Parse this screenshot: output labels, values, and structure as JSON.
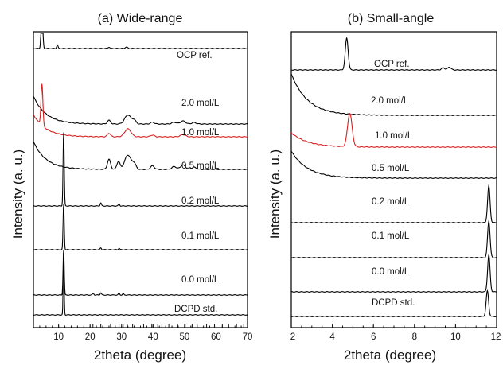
{
  "chart_data": [
    {
      "type": "line",
      "title": "(a) Wide-range",
      "xlabel": "2theta (degree)",
      "ylabel": "Intensity (a. u.)",
      "xlim": [
        2,
        70
      ],
      "x_ticks": [
        10,
        20,
        30,
        40,
        50,
        60,
        70
      ],
      "y_ticks_shown": false,
      "series": [
        {
          "name": "OCP ref.",
          "color": "#000000",
          "baseline": 0.0,
          "peaks": [
            [
              4.7,
              1.0,
              0.25
            ],
            [
              9.6,
              0.08,
              0.2
            ],
            [
              26,
              0.03,
              0.3
            ],
            [
              31.5,
              0.03,
              0.4
            ]
          ],
          "low_angle_tail": 0.0
        },
        {
          "name": "2.0 mol/L",
          "color": "#000000",
          "baseline": 0.0,
          "peaks": [
            [
              26,
              0.12,
              0.5
            ],
            [
              32,
              0.3,
              1.0
            ],
            [
              34,
              0.12,
              0.6
            ],
            [
              39.8,
              0.06,
              0.6
            ],
            [
              46.7,
              0.06,
              0.7
            ],
            [
              49.5,
              0.1,
              0.8
            ],
            [
              53,
              0.05,
              0.7
            ]
          ],
          "low_angle_tail": 0.9
        },
        {
          "name": "1.0 mol/L",
          "color": "#d62020",
          "baseline": 0.0,
          "peaks": [
            [
              4.7,
              0.95,
              0.3
            ],
            [
              26,
              0.08,
              0.5
            ],
            [
              32,
              0.18,
              1.0
            ],
            [
              39.8,
              0.04,
              0.6
            ],
            [
              49.5,
              0.05,
              0.8
            ]
          ],
          "low_angle_tail": 0.5
        },
        {
          "name": "0.5 mol/L",
          "color": "#000000",
          "baseline": 0.0,
          "peaks": [
            [
              26,
              0.28,
              0.5
            ],
            [
              29,
              0.22,
              0.5
            ],
            [
              32,
              0.4,
              1.0
            ],
            [
              34,
              0.15,
              0.6
            ],
            [
              39.8,
              0.1,
              0.6
            ],
            [
              46.7,
              0.08,
              0.7
            ],
            [
              49.5,
              0.12,
              0.8
            ],
            [
              53,
              0.06,
              0.7
            ]
          ],
          "low_angle_tail": 0.65
        },
        {
          "name": "0.2 mol/L",
          "color": "#000000",
          "baseline": 0.0,
          "peaks": [
            [
              11.6,
              1.0,
              0.18
            ],
            [
              23.4,
              0.04,
              0.2
            ],
            [
              29.2,
              0.03,
              0.2
            ]
          ],
          "low_angle_tail": 0.0
        },
        {
          "name": "0.1 mol/L",
          "color": "#000000",
          "baseline": 0.0,
          "peaks": [
            [
              11.6,
              1.0,
              0.18
            ],
            [
              23.4,
              0.04,
              0.2
            ],
            [
              29.2,
              0.03,
              0.2
            ]
          ],
          "low_angle_tail": 0.0
        },
        {
          "name": "0.0 mol/L",
          "color": "#000000",
          "baseline": 0.0,
          "peaks": [
            [
              11.6,
              1.0,
              0.18
            ],
            [
              21,
              0.04,
              0.2
            ],
            [
              23.4,
              0.05,
              0.2
            ],
            [
              29.2,
              0.04,
              0.2
            ],
            [
              30.5,
              0.03,
              0.2
            ]
          ],
          "low_angle_tail": 0.0
        },
        {
          "name": "DCPD std.",
          "color": "#000000",
          "baseline": 0.0,
          "peaks": [
            [
              11.6,
              1.0,
              0.15
            ]
          ],
          "stick_pattern": [
            11.6,
            20.9,
            23.4,
            26.5,
            29.2,
            30.5,
            31.8,
            33.5,
            34.2,
            37,
            39.6,
            41.5,
            42.8,
            45,
            47.8,
            50.2,
            52.4,
            54,
            57,
            59.5,
            62,
            64,
            66.5,
            68.8
          ],
          "low_angle_tail": 0.0
        }
      ]
    },
    {
      "type": "line",
      "title": "(b) Small-angle",
      "xlabel": "2theta (degree)",
      "ylabel": "Intensity (a. u.)",
      "xlim": [
        2,
        12
      ],
      "x_ticks": [
        2,
        4,
        6,
        8,
        10,
        12
      ],
      "x_tick_labels": [
        "2",
        "4",
        "6",
        "8",
        "10",
        "12"
      ],
      "y_ticks_shown": false,
      "series": [
        {
          "name": "OCP ref.",
          "color": "#000000",
          "baseline": 0.0,
          "peaks": [
            [
              4.7,
              1.0,
              0.07
            ],
            [
              9.4,
              0.07,
              0.08
            ],
            [
              9.7,
              0.09,
              0.08
            ]
          ],
          "low_angle_tail": 0.0
        },
        {
          "name": "2.0 mol/L",
          "color": "#000000",
          "baseline": 0.0,
          "peaks": [],
          "low_angle_tail": 1.0
        },
        {
          "name": "1.0 mol/L",
          "color": "#d62020",
          "baseline": 0.0,
          "peaks": [
            [
              4.85,
              1.0,
              0.11
            ]
          ],
          "low_angle_tail": 0.5
        },
        {
          "name": "0.5 mol/L",
          "color": "#000000",
          "baseline": 0.0,
          "peaks": [],
          "low_angle_tail": 0.55
        },
        {
          "name": "0.2 mol/L",
          "color": "#000000",
          "baseline": 0.0,
          "peaks": [
            [
              11.62,
              1.0,
              0.06
            ]
          ],
          "low_angle_tail": 0.0
        },
        {
          "name": "0.1 mol/L",
          "color": "#000000",
          "baseline": 0.0,
          "peaks": [
            [
              11.62,
              1.0,
              0.06
            ]
          ],
          "low_angle_tail": 0.0
        },
        {
          "name": "0.0 mol/L",
          "color": "#000000",
          "baseline": 0.0,
          "peaks": [
            [
              11.62,
              1.0,
              0.06
            ]
          ],
          "low_angle_tail": 0.0
        },
        {
          "name": "DCPD std.",
          "color": "#000000",
          "baseline": 0.0,
          "peaks": [
            [
              11.55,
              1.0,
              0.06
            ]
          ],
          "low_angle_tail": 0.0
        }
      ]
    }
  ]
}
